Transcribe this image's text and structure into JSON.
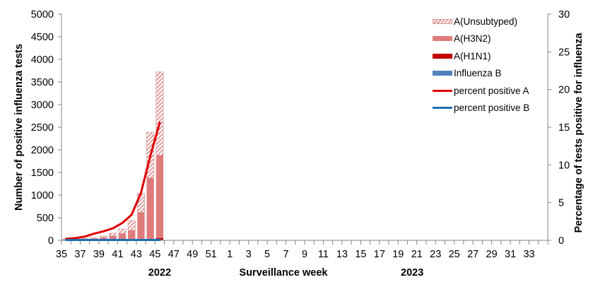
{
  "chart_data": {
    "type": "bar",
    "stacked": true,
    "title": "",
    "xlabel": "Surveillance  week",
    "ylabel": "Number of positive influenza tests",
    "ylabel_right": "Percentage of tests positive for influenza",
    "ylim": [
      0,
      5000
    ],
    "ylim_right": [
      0,
      30
    ],
    "yticks": [
      "0",
      "500",
      "1000",
      "1500",
      "2000",
      "2500",
      "3000",
      "3500",
      "4000",
      "4500",
      "5000"
    ],
    "yticks_right": [
      "0",
      "5",
      "10",
      "15",
      "20",
      "25",
      "30"
    ],
    "year_labels": [
      {
        "label": "2022",
        "at_week_index": 10
      },
      {
        "label": "2023",
        "at_week_index": 37
      }
    ],
    "categories": [
      "35",
      "36",
      "37",
      "38",
      "39",
      "40",
      "41",
      "42",
      "43",
      "44",
      "45",
      "46",
      "47",
      "48",
      "49",
      "50",
      "51",
      "52",
      "1",
      "2",
      "3",
      "4",
      "5",
      "6",
      "7",
      "8",
      "9",
      "10",
      "11",
      "12",
      "13",
      "14",
      "15",
      "16",
      "17",
      "18",
      "19",
      "20",
      "21",
      "22",
      "23",
      "24",
      "25",
      "26",
      "27",
      "28",
      "29",
      "30",
      "31",
      "32",
      "33",
      "34"
    ],
    "tick_labels": [
      "35",
      "37",
      "39",
      "41",
      "43",
      "45",
      "47",
      "49",
      "51",
      "1",
      "3",
      "5",
      "7",
      "9",
      "11",
      "13",
      "15",
      "17",
      "19",
      "21",
      "23",
      "25",
      "27",
      "29",
      "31",
      "33"
    ],
    "series": [
      {
        "name": "Influenza B",
        "kind": "bar",
        "color": "#4f81bd",
        "values": [
          2,
          2,
          3,
          3,
          4,
          5,
          5,
          6,
          8,
          10,
          12
        ]
      },
      {
        "name": "A(H1N1)",
        "kind": "bar",
        "color": "#c00000",
        "values": [
          2,
          2,
          2,
          3,
          4,
          5,
          6,
          8,
          12,
          20,
          40
        ]
      },
      {
        "name": "A(H3N2)",
        "kind": "bar",
        "color": "#e07b7b",
        "values": [
          15,
          18,
          22,
          35,
          55,
          90,
          140,
          210,
          600,
          1350,
          1830
        ]
      },
      {
        "name": "A(Unsubtyped)",
        "kind": "bar",
        "color": "#d98a8a",
        "hatched": true,
        "values": [
          8,
          10,
          12,
          20,
          30,
          60,
          100,
          215,
          410,
          1010,
          1840
        ]
      },
      {
        "name": "percent positive A",
        "kind": "line",
        "axis": "right",
        "color": "#e00000",
        "values": [
          0.2,
          0.3,
          0.5,
          0.9,
          1.2,
          1.6,
          2.3,
          3.4,
          6.3,
          11.2,
          15.6
        ]
      },
      {
        "name": "percent positive B",
        "kind": "line",
        "axis": "right",
        "color": "#1f6fb0",
        "values": [
          0.05,
          0.05,
          0.05,
          0.05,
          0.05,
          0.05,
          0.05,
          0.05,
          0.05,
          0.05,
          0.05
        ]
      }
    ],
    "legend_position": "top-right",
    "grid": false
  },
  "legend": {
    "items": [
      {
        "label": "A(Unsubtyped)",
        "type": "hatch",
        "color": "#d98a8a"
      },
      {
        "label": "A(H3N2)",
        "type": "bar",
        "color": "#e07b7b"
      },
      {
        "label": "A(H1N1)",
        "type": "bar",
        "color": "#c00000"
      },
      {
        "label": "Influenza B",
        "type": "bar",
        "color": "#4f81bd"
      },
      {
        "label": "percent positive A",
        "type": "line",
        "color": "#e00000"
      },
      {
        "label": "percent positive B",
        "type": "line",
        "color": "#1f6fb0"
      }
    ]
  }
}
